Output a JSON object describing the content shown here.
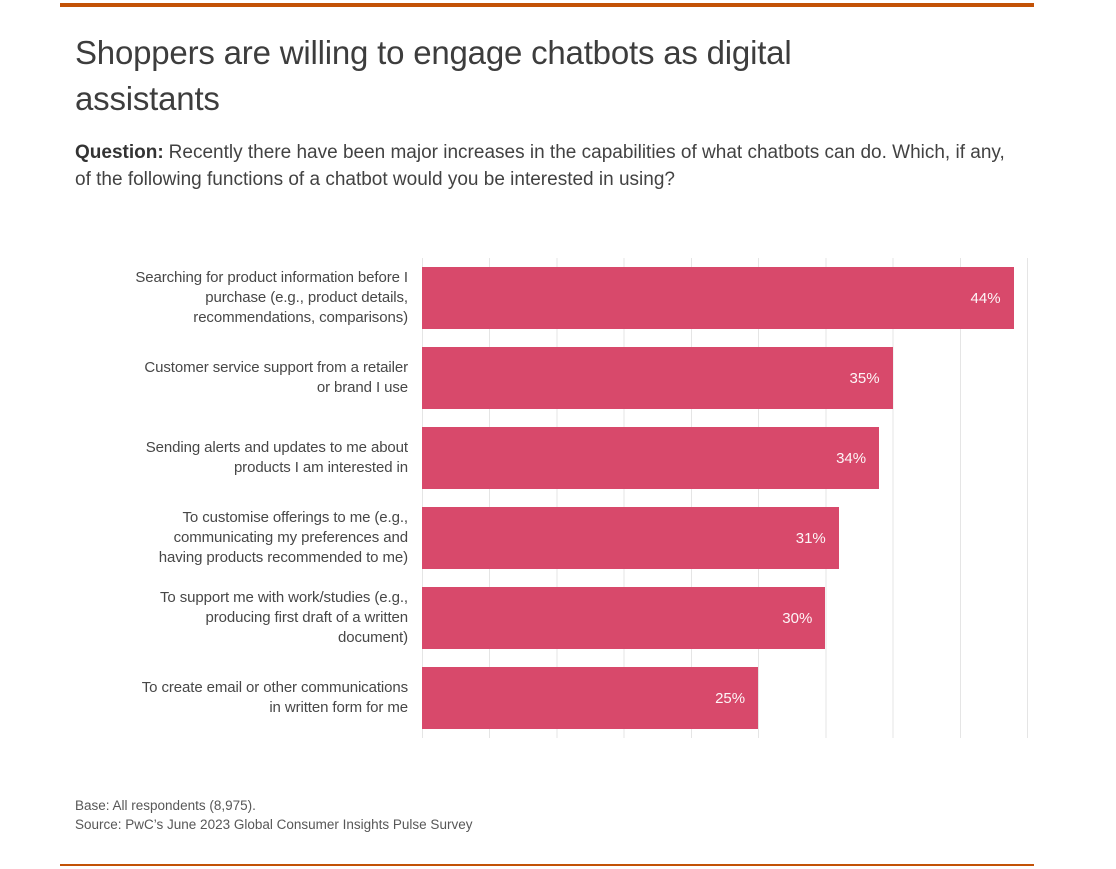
{
  "page": {
    "title": "Shoppers are willing to engage chatbots as digital assistants",
    "question_label": "Question:",
    "question_text": "Recently there have been major increases in the capabilities of what chatbots can do. Which, if any, of the following functions of a chatbot would you be interested in using?",
    "base_note": "Base: All respondents (8,975).",
    "source_note": "Source: PwC’s June 2023 Global Consumer Insights Pulse Survey",
    "accent_color": "#C35206"
  },
  "chart_data": {
    "type": "bar",
    "orientation": "horizontal",
    "title": "Shoppers are willing to engage chatbots as digital assistants",
    "categories": [
      "Searching for product information before I purchase (e.g., product details, recommendations, comparisons)",
      "Customer service support from a retailer or brand I use",
      "Sending alerts and updates to me about products I am interested in",
      "To customise offerings to me (e.g., communicating my preferences and having products recommended to me)",
      "To support me with work/studies (e.g., producing first draft of a written document)",
      "To create email or other communications in written form for me"
    ],
    "label_lines": [
      [
        "Searching for product information before I",
        "purchase (e.g., product details,",
        "recommendations, comparisons)"
      ],
      [
        "Customer service support from a retailer",
        "or brand I use"
      ],
      [
        "Sending alerts and updates to me about",
        "products I am interested in"
      ],
      [
        "To customise offerings to me (e.g.,",
        "communicating my preferences and",
        "having products recommended to me)"
      ],
      [
        "To support me with work/studies (e.g.,",
        "producing first draft of a written",
        "document)"
      ],
      [
        "To create email or other communications",
        "in written form for me"
      ]
    ],
    "values": [
      44,
      35,
      34,
      31,
      30,
      25
    ],
    "value_labels": [
      "44%",
      "35%",
      "34%",
      "31%",
      "30%",
      "25%"
    ],
    "xlim": [
      0,
      45
    ],
    "gridline_step": 5,
    "grid": true,
    "legend": false,
    "xlabel": "",
    "ylabel": "",
    "bar_color": "#D8496B",
    "grid_color": "#E5E5E5",
    "value_label_color": "#FFFFFF",
    "value_label_position": "inside-end"
  }
}
